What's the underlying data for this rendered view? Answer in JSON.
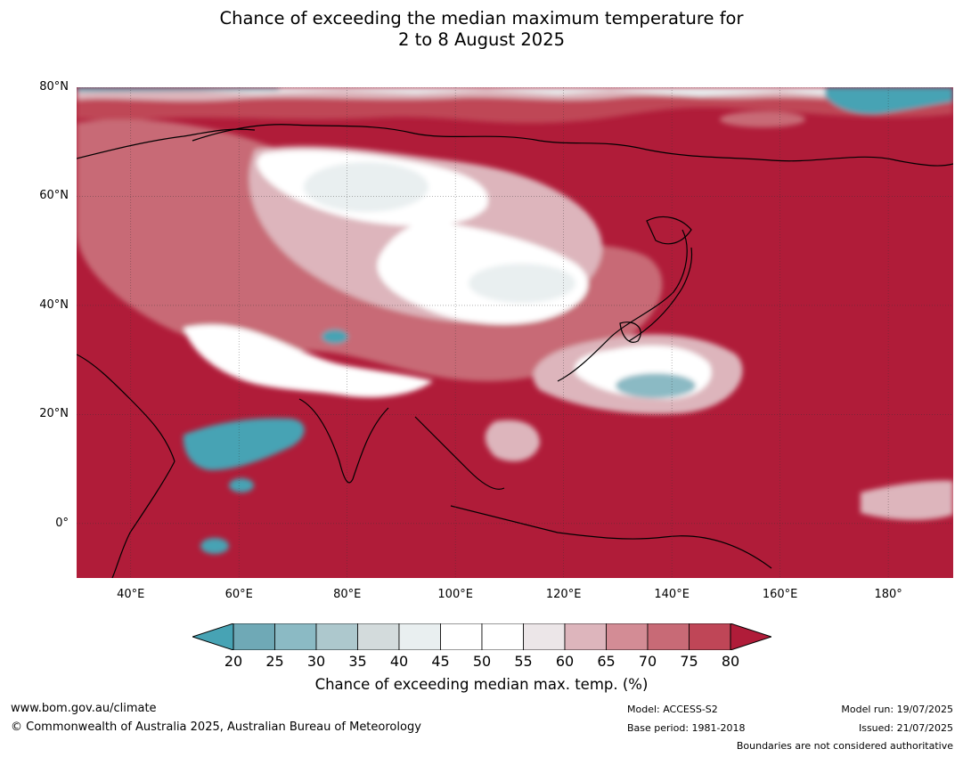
{
  "title": {
    "line1": "Chance of exceeding the median maximum temperature for",
    "line2": "2 to 8 August 2025"
  },
  "map": {
    "projection": "equirectangular",
    "lon_range": [
      30,
      192
    ],
    "lat_range": [
      -10,
      80
    ],
    "lat_ticks": [
      {
        "value": 80,
        "label": "80°N"
      },
      {
        "value": 60,
        "label": "60°N"
      },
      {
        "value": 40,
        "label": "40°N"
      },
      {
        "value": 20,
        "label": "20°N"
      },
      {
        "value": 0,
        "label": "0°"
      }
    ],
    "lon_ticks": [
      {
        "value": 40,
        "label": "40°E"
      },
      {
        "value": 60,
        "label": "60°E"
      },
      {
        "value": 80,
        "label": "80°E"
      },
      {
        "value": 100,
        "label": "100°E"
      },
      {
        "value": 120,
        "label": "120°E"
      },
      {
        "value": 140,
        "label": "140°E"
      },
      {
        "value": 160,
        "label": "160°E"
      },
      {
        "value": 180,
        "label": "180°"
      }
    ],
    "gridlines": true,
    "background_color": "#b01c39"
  },
  "colorbar": {
    "ticks": [
      "20",
      "25",
      "30",
      "35",
      "40",
      "45",
      "50",
      "55",
      "60",
      "65",
      "70",
      "75",
      "80"
    ],
    "colors": [
      "#6fa9b6",
      "#8bbac4",
      "#adc8cd",
      "#d3dbdc",
      "#e9eff0",
      "#ffffff",
      "#ffffff",
      "#ece6e8",
      "#ddb5bc",
      "#d38c95",
      "#c86a76",
      "#bf4657"
    ],
    "under_color": "#47a3b4",
    "over_color": "#b01c39",
    "label": "Chance of exceeding median max. temp. (%)"
  },
  "footer": {
    "website": "www.bom.gov.au/climate",
    "copyright": "© Commonwealth of Australia 2025, Australian Bureau of Meteorology",
    "model": "Model: ACCESS-S2",
    "base_period": "Base period: 1981-2018",
    "model_run": "Model run: 19/07/2025",
    "issued": "Issued: 21/07/2025",
    "disclaimer": "Boundaries are not considered authoritative"
  }
}
